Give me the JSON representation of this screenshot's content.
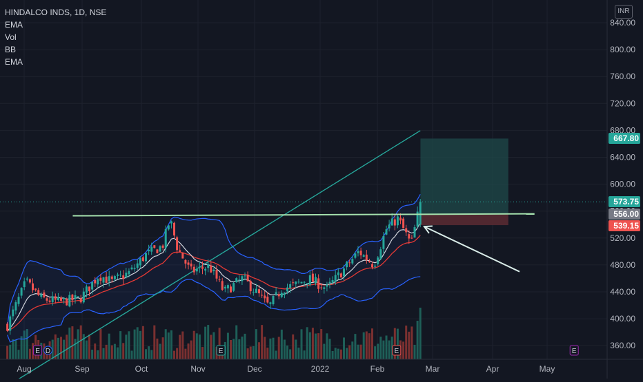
{
  "header": {
    "title": "HINDALCO INDS, 1D, NSE",
    "indicators": [
      "EMA",
      "Vol",
      "BB",
      "EMA"
    ],
    "currency": "INR"
  },
  "colors": {
    "background": "#131722",
    "up": "#26a69a",
    "down": "#ef5350",
    "ema_fast": "#d1d4dc",
    "ema_mid": "#e53935",
    "ema_slow": "#26a69a",
    "bb": "#2962ff",
    "resistance": "#a5e1ad",
    "arrow": "#d9ece8",
    "target_zone": "#1f4a4a",
    "stop_zone": "#5c2b32"
  },
  "chart_data": {
    "type": "candlestick",
    "symbol": "HINDALCO INDS",
    "timeframe": "1D",
    "exchange": "NSE",
    "currency": "INR",
    "ylim": [
      340,
      850
    ],
    "y_ticks": [
      "840.00",
      "800.00",
      "760.00",
      "720.00",
      "680.00",
      "640.00",
      "600.00",
      "560.00",
      "520.00",
      "480.00",
      "440.00",
      "400.00",
      "360.00"
    ],
    "x_ticks": [
      "Aug",
      "Sep",
      "Oct",
      "Nov",
      "Dec",
      "2022",
      "Feb",
      "Mar",
      "Apr",
      "May"
    ],
    "price_path": {
      "x": [
        "2021-07-23",
        "2021-08-02",
        "2021-08-10",
        "2021-08-20",
        "2021-08-31",
        "2021-09-10",
        "2021-09-17",
        "2021-09-27",
        "2021-10-05",
        "2021-10-14",
        "2021-10-18",
        "2021-10-22",
        "2021-10-29",
        "2021-11-08",
        "2021-11-16",
        "2021-11-26",
        "2021-12-03",
        "2021-12-10",
        "2021-12-17",
        "2021-12-24",
        "2021-12-31",
        "2022-01-10",
        "2022-01-18",
        "2022-01-27",
        "2022-02-04",
        "2022-02-11",
        "2022-02-17",
        "2022-02-24",
        "2022-03-01"
      ],
      "y": [
        390,
        455,
        430,
        425,
        430,
        465,
        455,
        470,
        495,
        508,
        548,
        505,
        470,
        478,
        440,
        460,
        440,
        418,
        445,
        450,
        460,
        445,
        470,
        500,
        480,
        535,
        549,
        510,
        573.75
      ]
    },
    "last_price": "573.75",
    "resistance_line": {
      "start": [
        "2021-08-27",
        553
      ],
      "end": [
        "2022-05-01",
        556
      ],
      "label": "556.00"
    },
    "position": {
      "entry": 556.0,
      "target": 667.8,
      "stop": 539.15,
      "start": "2022-03-01",
      "end": "2022-04-17"
    },
    "price_labels": [
      {
        "value": "667.80",
        "color": "#26a69a"
      },
      {
        "value": "573.75",
        "color": "#26a69a"
      },
      {
        "value": "556.00",
        "color": "#787b86"
      },
      {
        "value": "539.15",
        "color": "#ef5350"
      }
    ],
    "annotation_arrow": {
      "from": [
        "2022-04-23",
        470
      ],
      "to": [
        "2022-03-03",
        537
      ]
    },
    "event_markers": [
      {
        "x": "2021-08-06",
        "labels": [
          "E",
          "D"
        ]
      },
      {
        "x": "2021-11-12",
        "labels": [
          "E"
        ]
      },
      {
        "x": "2022-02-14",
        "labels": [
          "E"
        ]
      },
      {
        "x": "2022-05-20",
        "labels": [
          "E"
        ]
      }
    ]
  }
}
